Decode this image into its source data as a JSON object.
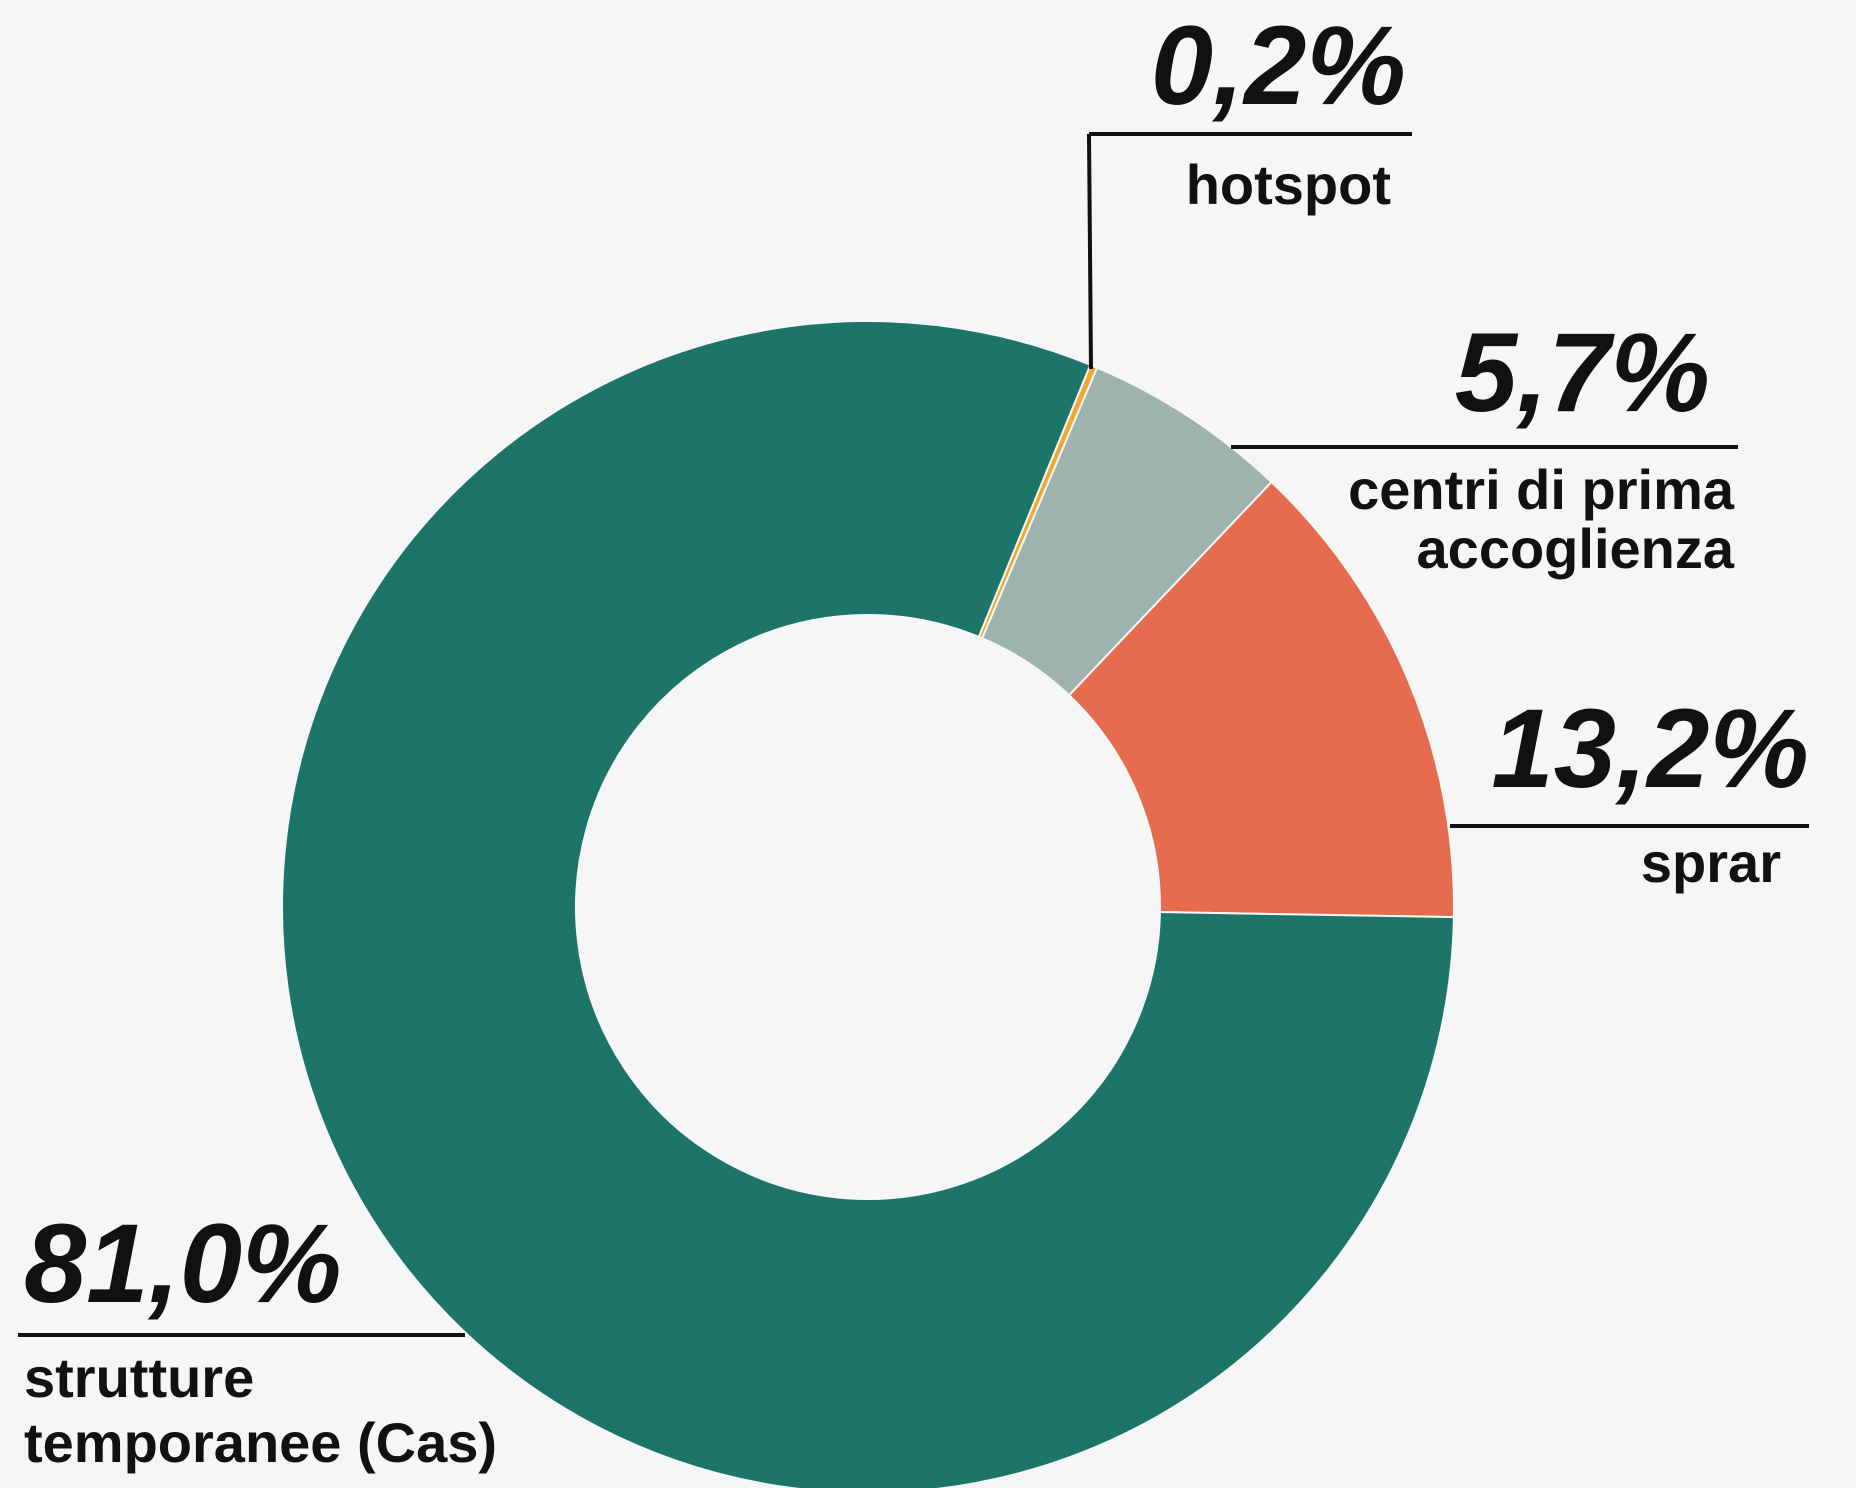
{
  "chart_data": {
    "type": "donut",
    "categories": [
      [
        "hotspot"
      ],
      [
        "centri di prima",
        "accoglienza"
      ],
      [
        "sprar"
      ],
      [
        "strutture",
        "temporanee (Cas)"
      ]
    ],
    "values": [
      0.2,
      5.7,
      13.2,
      81.0
    ],
    "value_labels": [
      "0,2%",
      "5,7%",
      "13,2%",
      "81,0%"
    ],
    "colors": [
      "#f0a830",
      "#9fb3ae",
      "#e56c4e",
      "#1d7569"
    ]
  }
}
